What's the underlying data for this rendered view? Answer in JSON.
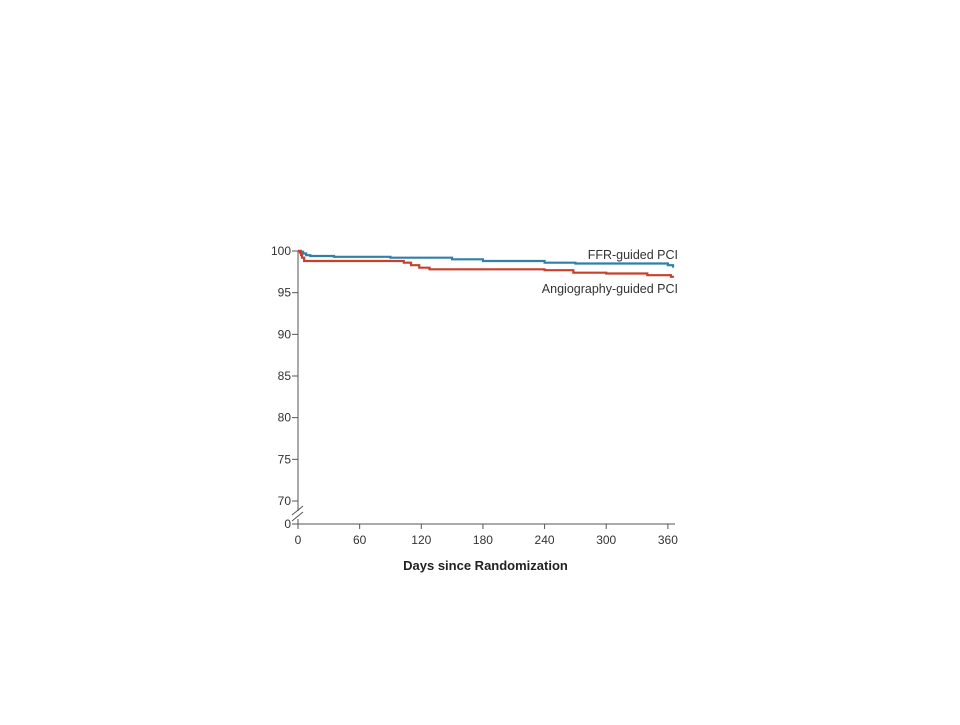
{
  "slide": {
    "background": "#ffffff"
  },
  "chart_data": {
    "type": "line",
    "title": "",
    "xlabel": "Days since Randomization",
    "ylabel": "",
    "xlim": [
      0,
      365
    ],
    "ylim": [
      70,
      100
    ],
    "axis_break": true,
    "x_ticks": [
      0,
      60,
      120,
      180,
      240,
      300,
      360
    ],
    "x_tick_labels": [
      "0",
      "60",
      "120",
      "180",
      "240",
      "300",
      "360"
    ],
    "y_ticks": [
      0,
      70,
      75,
      80,
      85,
      90,
      95,
      100
    ],
    "y_tick_labels": [
      "0",
      "70",
      "75",
      "80",
      "85",
      "90",
      "95",
      "100"
    ],
    "grid": false,
    "step": true,
    "series": [
      {
        "name": "FFR-guided PCI",
        "color": "#2f7fa8",
        "x": [
          0,
          3,
          5,
          8,
          12,
          35,
          90,
          150,
          180,
          240,
          270,
          360,
          365
        ],
        "y": [
          100,
          99.9,
          99.7,
          99.5,
          99.4,
          99.3,
          99.2,
          99.0,
          98.8,
          98.6,
          98.5,
          98.3,
          98.0
        ]
      },
      {
        "name": "Angiography-guided PCI",
        "color": "#c6402c",
        "x": [
          0,
          2,
          3,
          4,
          6,
          103,
          110,
          118,
          128,
          240,
          268,
          300,
          340,
          363,
          365
        ],
        "y": [
          100,
          99.8,
          99.5,
          99.2,
          98.8,
          98.6,
          98.3,
          98.0,
          97.8,
          97.7,
          97.4,
          97.3,
          97.1,
          96.9,
          96.8
        ]
      }
    ],
    "annotations": [
      {
        "text": "FFR-guided PCI",
        "series": 0
      },
      {
        "text": "Angiography-guided PCI",
        "series": 1
      }
    ]
  }
}
